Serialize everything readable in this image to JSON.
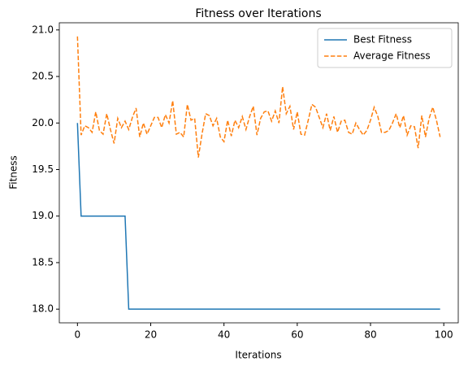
{
  "chart_data": {
    "type": "line",
    "title": "Fitness over Iterations",
    "xlabel": "Iterations",
    "ylabel": "Fitness",
    "x": [
      0,
      1,
      2,
      3,
      4,
      5,
      6,
      7,
      8,
      9,
      10,
      11,
      12,
      13,
      14,
      15,
      16,
      17,
      18,
      19,
      20,
      21,
      22,
      23,
      24,
      25,
      26,
      27,
      28,
      29,
      30,
      31,
      32,
      33,
      34,
      35,
      36,
      37,
      38,
      39,
      40,
      41,
      42,
      43,
      44,
      45,
      46,
      47,
      48,
      49,
      50,
      51,
      52,
      53,
      54,
      55,
      56,
      57,
      58,
      59,
      60,
      61,
      62,
      63,
      64,
      65,
      66,
      67,
      68,
      69,
      70,
      71,
      72,
      73,
      74,
      75,
      76,
      77,
      78,
      79,
      80,
      81,
      82,
      83,
      84,
      85,
      86,
      87,
      88,
      89,
      90,
      91,
      92,
      93,
      94,
      95,
      96,
      97,
      98,
      99
    ],
    "series": [
      {
        "name": "Best Fitness",
        "color": "#1f77b4",
        "linestyle": "solid",
        "values": [
          20,
          19,
          19,
          19,
          19,
          19,
          19,
          19,
          19,
          19,
          19,
          19,
          19,
          19,
          18,
          18,
          18,
          18,
          18,
          18,
          18,
          18,
          18,
          18,
          18,
          18,
          18,
          18,
          18,
          18,
          18,
          18,
          18,
          18,
          18,
          18,
          18,
          18,
          18,
          18,
          18,
          18,
          18,
          18,
          18,
          18,
          18,
          18,
          18,
          18,
          18,
          18,
          18,
          18,
          18,
          18,
          18,
          18,
          18,
          18,
          18,
          18,
          18,
          18,
          18,
          18,
          18,
          18,
          18,
          18,
          18,
          18,
          18,
          18,
          18,
          18,
          18,
          18,
          18,
          18,
          18,
          18,
          18,
          18,
          18,
          18,
          18,
          18,
          18,
          18,
          18,
          18,
          18,
          18,
          18,
          18,
          18,
          18,
          18,
          18
        ]
      },
      {
        "name": "Average Fitness",
        "color": "#ff7f0e",
        "linestyle": "dashed",
        "values": [
          20.93,
          19.87,
          19.97,
          19.95,
          19.9,
          20.12,
          19.92,
          19.88,
          20.1,
          19.93,
          19.78,
          20.05,
          19.95,
          20.02,
          19.93,
          20.06,
          20.16,
          19.85,
          20.0,
          19.88,
          19.97,
          20.06,
          20.06,
          19.95,
          20.09,
          20.0,
          20.24,
          19.88,
          19.9,
          19.85,
          20.2,
          20.03,
          20.05,
          19.63,
          19.88,
          20.1,
          20.08,
          19.97,
          20.05,
          19.85,
          19.8,
          20.03,
          19.86,
          20.03,
          19.95,
          20.07,
          19.93,
          20.07,
          20.18,
          19.87,
          20.05,
          20.12,
          20.13,
          20.02,
          20.13,
          20.0,
          20.39,
          20.1,
          20.18,
          19.93,
          20.12,
          19.88,
          19.87,
          20.03,
          20.2,
          20.17,
          20.06,
          19.95,
          20.1,
          19.92,
          20.07,
          19.9,
          20.02,
          20.03,
          19.9,
          19.88,
          20.0,
          19.93,
          19.87,
          19.92,
          20.03,
          20.17,
          20.07,
          19.9,
          19.9,
          19.92,
          20.0,
          20.1,
          19.95,
          20.08,
          19.87,
          19.97,
          19.96,
          19.73,
          20.08,
          19.85,
          20.05,
          20.17,
          20.03,
          19.85
        ]
      }
    ],
    "xlim": [
      -4.95,
      103.95
    ],
    "xticks": [
      0,
      20,
      40,
      60,
      80,
      100
    ],
    "ylim": [
      17.853,
      21.077
    ],
    "yticks": [
      {
        "value": 18,
        "label": "18.0"
      },
      {
        "value": 18.5,
        "label": "18.5"
      },
      {
        "value": 19,
        "label": "19.0"
      },
      {
        "value": 19.5,
        "label": "19.5"
      },
      {
        "value": 20,
        "label": "20.0"
      },
      {
        "value": 20.5,
        "label": "20.5"
      },
      {
        "value": 21,
        "label": "21.0"
      }
    ],
    "legend": "upper right"
  }
}
